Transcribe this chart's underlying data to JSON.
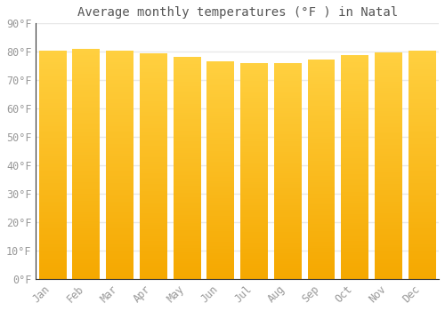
{
  "title": "Average monthly temperatures (°F ) in Natal",
  "months": [
    "Jan",
    "Feb",
    "Mar",
    "Apr",
    "May",
    "Jun",
    "Jul",
    "Aug",
    "Sep",
    "Oct",
    "Nov",
    "Dec"
  ],
  "values": [
    80.4,
    81.1,
    80.4,
    79.3,
    78.1,
    76.5,
    75.9,
    75.9,
    77.2,
    78.8,
    79.9,
    80.4
  ],
  "bar_color_bottom": "#F5A800",
  "bar_color_top": "#FFD040",
  "background_color": "#FFFFFF",
  "plot_bg_color": "#FFFFFF",
  "grid_color": "#E8E8E8",
  "text_color": "#999999",
  "title_color": "#555555",
  "ylim": [
    0,
    90
  ],
  "yticks": [
    0,
    10,
    20,
    30,
    40,
    50,
    60,
    70,
    80,
    90
  ],
  "title_fontsize": 10,
  "tick_fontsize": 8.5,
  "bar_width": 0.82
}
